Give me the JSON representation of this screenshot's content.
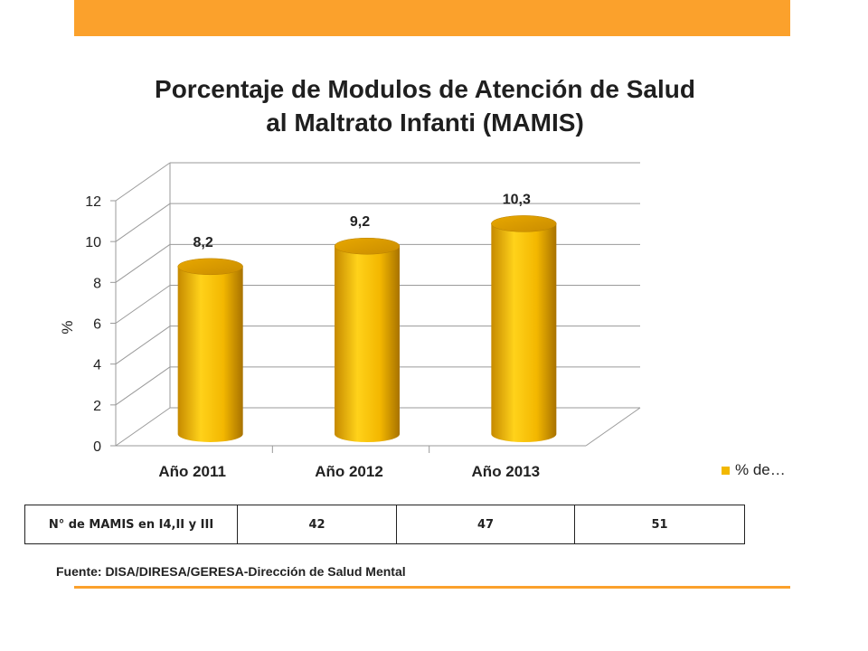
{
  "chart_data": {
    "type": "bar",
    "title": "Porcentaje de Modulos de Atención de Salud al Maltrato Infanti (MAMIS)",
    "title_lines": [
      "Porcentaje de Modulos de Atención de Salud",
      "al Maltrato Infanti (MAMIS)"
    ],
    "categories": [
      "Año 2011",
      "Año 2012",
      "Año 2013"
    ],
    "series": [
      {
        "name": "% de…",
        "values": [
          8.2,
          9.2,
          10.3
        ],
        "labels": [
          "8,2",
          "9,2",
          "10,3"
        ]
      }
    ],
    "ylabel": "%",
    "xlabel": "",
    "ylim": [
      0,
      12
    ],
    "yticks": [
      0,
      2,
      4,
      6,
      8,
      10,
      12
    ],
    "grid": true,
    "style": "3d-cylinder",
    "legend_position": "right",
    "color": "#f2b800"
  },
  "table": {
    "label": "N° de MAMIS en I4,II y III",
    "values": [
      "42",
      "47",
      "51"
    ]
  },
  "source": "Fuente: DISA/DIRESA/GERESA-Dirección de Salud Mental"
}
